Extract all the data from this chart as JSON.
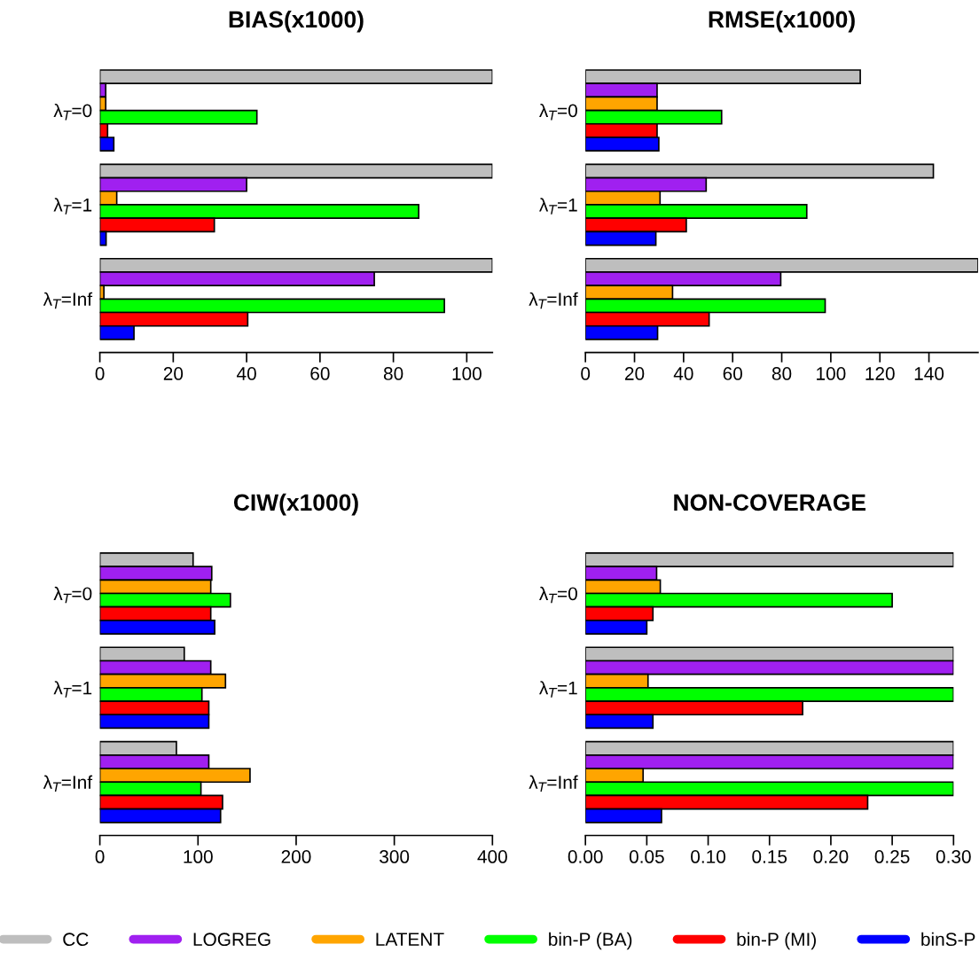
{
  "chart_data": [
    {
      "type": "bar",
      "orientation": "horizontal",
      "title": "BIAS(x1000)",
      "categories": [
        "λ$_{T}$=0",
        "λ$_{T}$=1",
        "λ$_{T}$=Inf"
      ],
      "xlim": [
        0,
        107
      ],
      "xticks": [
        0,
        20,
        40,
        60,
        80,
        100
      ],
      "legend": "bottom",
      "series": [
        {
          "name": "CC",
          "color": "#bebebe",
          "values": [
            107,
            107,
            107
          ]
        },
        {
          "name": "LOGREG",
          "color": "#a020f0",
          "values": [
            1.6,
            40.0,
            74.8
          ]
        },
        {
          "name": "LATENT",
          "color": "#ffa500",
          "values": [
            1.6,
            4.6,
            1.1
          ]
        },
        {
          "name": "bin-P (BA)",
          "color": "#00ff00",
          "values": [
            42.8,
            86.9,
            93.9
          ]
        },
        {
          "name": "bin-P (MI)",
          "color": "#ff0000",
          "values": [
            2.1,
            31.2,
            40.3
          ]
        },
        {
          "name": "binS-P",
          "color": "#0000ff",
          "values": [
            3.8,
            1.7,
            9.3
          ]
        }
      ]
    },
    {
      "type": "bar",
      "orientation": "horizontal",
      "title": "RMSE(x1000)",
      "categories": [
        "λ$_{T}$=0",
        "λ$_{T}$=1",
        "λ$_{T}$=Inf"
      ],
      "xlim": [
        0,
        160
      ],
      "xticks": [
        0,
        20,
        40,
        60,
        80,
        100,
        120,
        140
      ],
      "series": [
        {
          "color": "#bebebe",
          "values": [
            112,
            141.8,
            160
          ]
        },
        {
          "color": "#a020f0",
          "values": [
            29.2,
            49.2,
            79.6
          ]
        },
        {
          "color": "#ffa500",
          "values": [
            29.2,
            30.4,
            35.5
          ]
        },
        {
          "color": "#00ff00",
          "values": [
            55.5,
            90.2,
            97.7
          ]
        },
        {
          "color": "#ff0000",
          "values": [
            29.2,
            41.1,
            50.4
          ]
        },
        {
          "color": "#0000ff",
          "values": [
            29.9,
            28.7,
            29.4
          ]
        }
      ]
    },
    {
      "type": "bar",
      "orientation": "horizontal",
      "title": "CIW(x1000)",
      "categories": [
        "λ$_{T}$=0",
        "λ$_{T}$=1",
        "λ$_{T}$=Inf"
      ],
      "xlim": [
        0,
        400
      ],
      "xticks": [
        0,
        100,
        200,
        300,
        400
      ],
      "series": [
        {
          "color": "#bebebe",
          "values": [
            95,
            86,
            78
          ]
        },
        {
          "color": "#a020f0",
          "values": [
            114,
            113,
            111
          ]
        },
        {
          "color": "#ffa500",
          "values": [
            113,
            128,
            153
          ]
        },
        {
          "color": "#00ff00",
          "values": [
            133,
            104,
            103
          ]
        },
        {
          "color": "#ff0000",
          "values": [
            113,
            111,
            125
          ]
        },
        {
          "color": "#0000ff",
          "values": [
            117,
            111,
            123
          ]
        }
      ]
    },
    {
      "type": "bar",
      "orientation": "horizontal",
      "title": "NON-COVERAGE",
      "categories": [
        "λ$_{T}$=0",
        "λ$_{T}$=1",
        "λ$_{T}$=Inf"
      ],
      "xlim": [
        0,
        0.3
      ],
      "xticks": [
        {
          "value": 0,
          "label": "0.00"
        },
        {
          "value": 0.05,
          "label": "0.05"
        },
        {
          "value": 0.1,
          "label": "0.10"
        },
        {
          "value": 0.15,
          "label": "0.15"
        },
        {
          "value": 0.2,
          "label": "0.20"
        },
        {
          "value": 0.25,
          "label": "0.25"
        },
        {
          "value": 0.3,
          "label": "0.30"
        }
      ],
      "series": [
        {
          "color": "#bebebe",
          "values": [
            0.3,
            0.3,
            0.3
          ]
        },
        {
          "color": "#a020f0",
          "values": [
            0.058,
            0.3,
            0.3
          ]
        },
        {
          "color": "#ffa500",
          "values": [
            0.061,
            0.051,
            0.047
          ]
        },
        {
          "color": "#00ff00",
          "values": [
            0.25,
            0.3,
            0.3
          ]
        },
        {
          "color": "#ff0000",
          "values": [
            0.055,
            0.177,
            0.23
          ]
        },
        {
          "color": "#0000ff",
          "values": [
            0.05,
            0.055,
            0.062
          ]
        }
      ]
    }
  ]
}
